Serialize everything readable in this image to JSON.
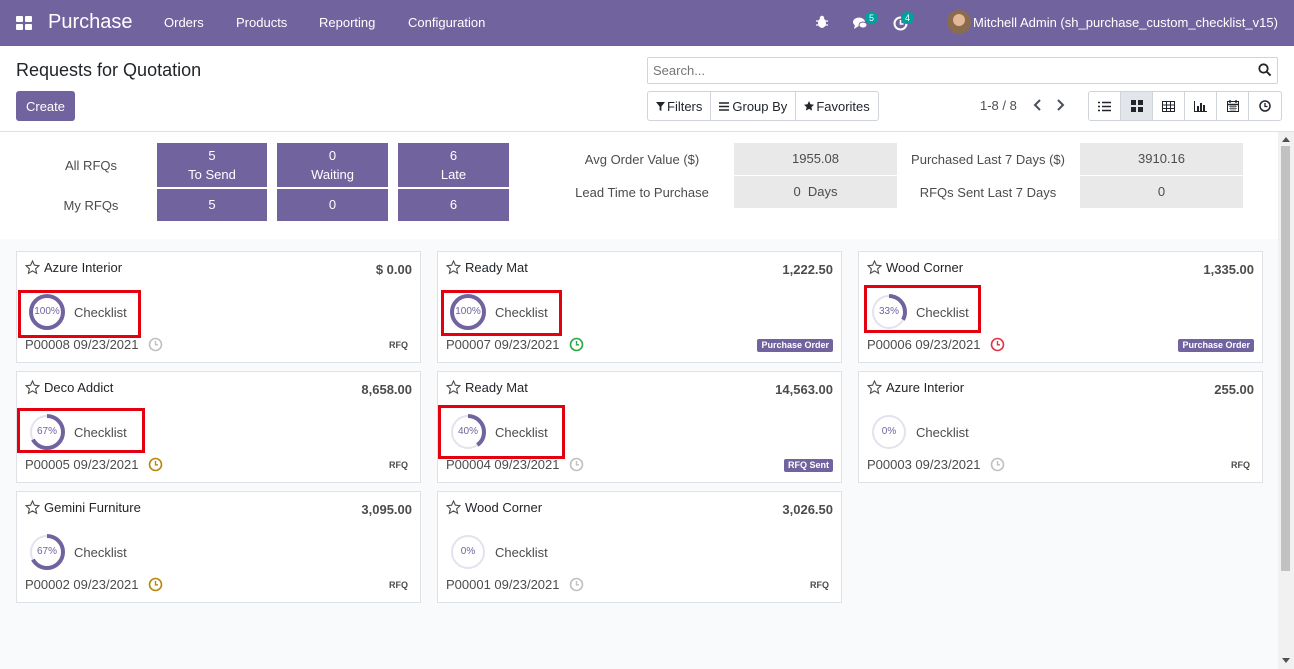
{
  "navbar": {
    "brand": "Purchase",
    "menu": [
      "Orders",
      "Products",
      "Reporting",
      "Configuration"
    ],
    "messages_count": "5",
    "activities_count": "4",
    "user": "Mitchell Admin (sh_purchase_custom_checklist_v15)"
  },
  "control": {
    "title": "Requests for Quotation",
    "create_label": "Create",
    "search_placeholder": "Search...",
    "filters_label": "Filters",
    "groupby_label": "Group By",
    "favorites_label": "Favorites",
    "pager": "1-8 / 8"
  },
  "dashboard": {
    "all_rfqs_label": "All RFQs",
    "my_rfqs_label": "My RFQs",
    "to_send_count": "5",
    "to_send_label": "To Send",
    "waiting_count": "0",
    "waiting_label": "Waiting",
    "late_count": "6",
    "late_label": "Late",
    "my_to_send": "5",
    "my_waiting": "0",
    "my_late": "6",
    "avg_order_label": "Avg Order Value ($)",
    "avg_order_value": "1955.08",
    "lead_time_label": "Lead Time to Purchase",
    "lead_time_value": "0  Days",
    "purchased_label": "Purchased Last 7 Days ($)",
    "purchased_value": "3910.16",
    "rfqs_sent_label": "RFQs Sent Last 7 Days",
    "rfqs_sent_value": "0"
  },
  "checklist_label": "Checklist",
  "cards": [
    {
      "partner": "Azure Interior",
      "amount": "$ 0.00",
      "percent": "100%",
      "progress": 1.0,
      "ref": "P00008 09/23/2021",
      "tag": "RFQ",
      "clock_color": "#c0c0c0"
    },
    {
      "partner": "Ready Mat",
      "amount": "1,222.50",
      "percent": "100%",
      "progress": 1.0,
      "ref": "P00007 09/23/2021",
      "tag": "Purchase Order",
      "clock_color": "#28a745"
    },
    {
      "partner": "Wood Corner",
      "amount": "1,335.00",
      "percent": "33%",
      "progress": 0.33,
      "ref": "P00006 09/23/2021",
      "tag": "Purchase Order",
      "clock_color": "#dc3545"
    },
    {
      "partner": "Deco Addict",
      "amount": "8,658.00",
      "percent": "67%",
      "progress": 0.67,
      "ref": "P00005 09/23/2021",
      "tag": "RFQ",
      "clock_color": "#b8860b"
    },
    {
      "partner": "Ready Mat",
      "amount": "14,563.00",
      "percent": "40%",
      "progress": 0.4,
      "ref": "P00004 09/23/2021",
      "tag": "RFQ Sent",
      "clock_color": "#c0c0c0"
    },
    {
      "partner": "Azure Interior",
      "amount": "255.00",
      "percent": "0%",
      "progress": 0.0,
      "ref": "P00003 09/23/2021",
      "tag": "RFQ",
      "clock_color": "#c0c0c0"
    },
    {
      "partner": "Gemini Furniture",
      "amount": "3,095.00",
      "percent": "67%",
      "progress": 0.67,
      "ref": "P00002 09/23/2021",
      "tag": "RFQ",
      "clock_color": "#b8860b"
    },
    {
      "partner": "Wood Corner",
      "amount": "3,026.50",
      "percent": "0%",
      "progress": 0.0,
      "ref": "P00001 09/23/2021",
      "tag": "RFQ",
      "clock_color": "#c0c0c0"
    }
  ]
}
